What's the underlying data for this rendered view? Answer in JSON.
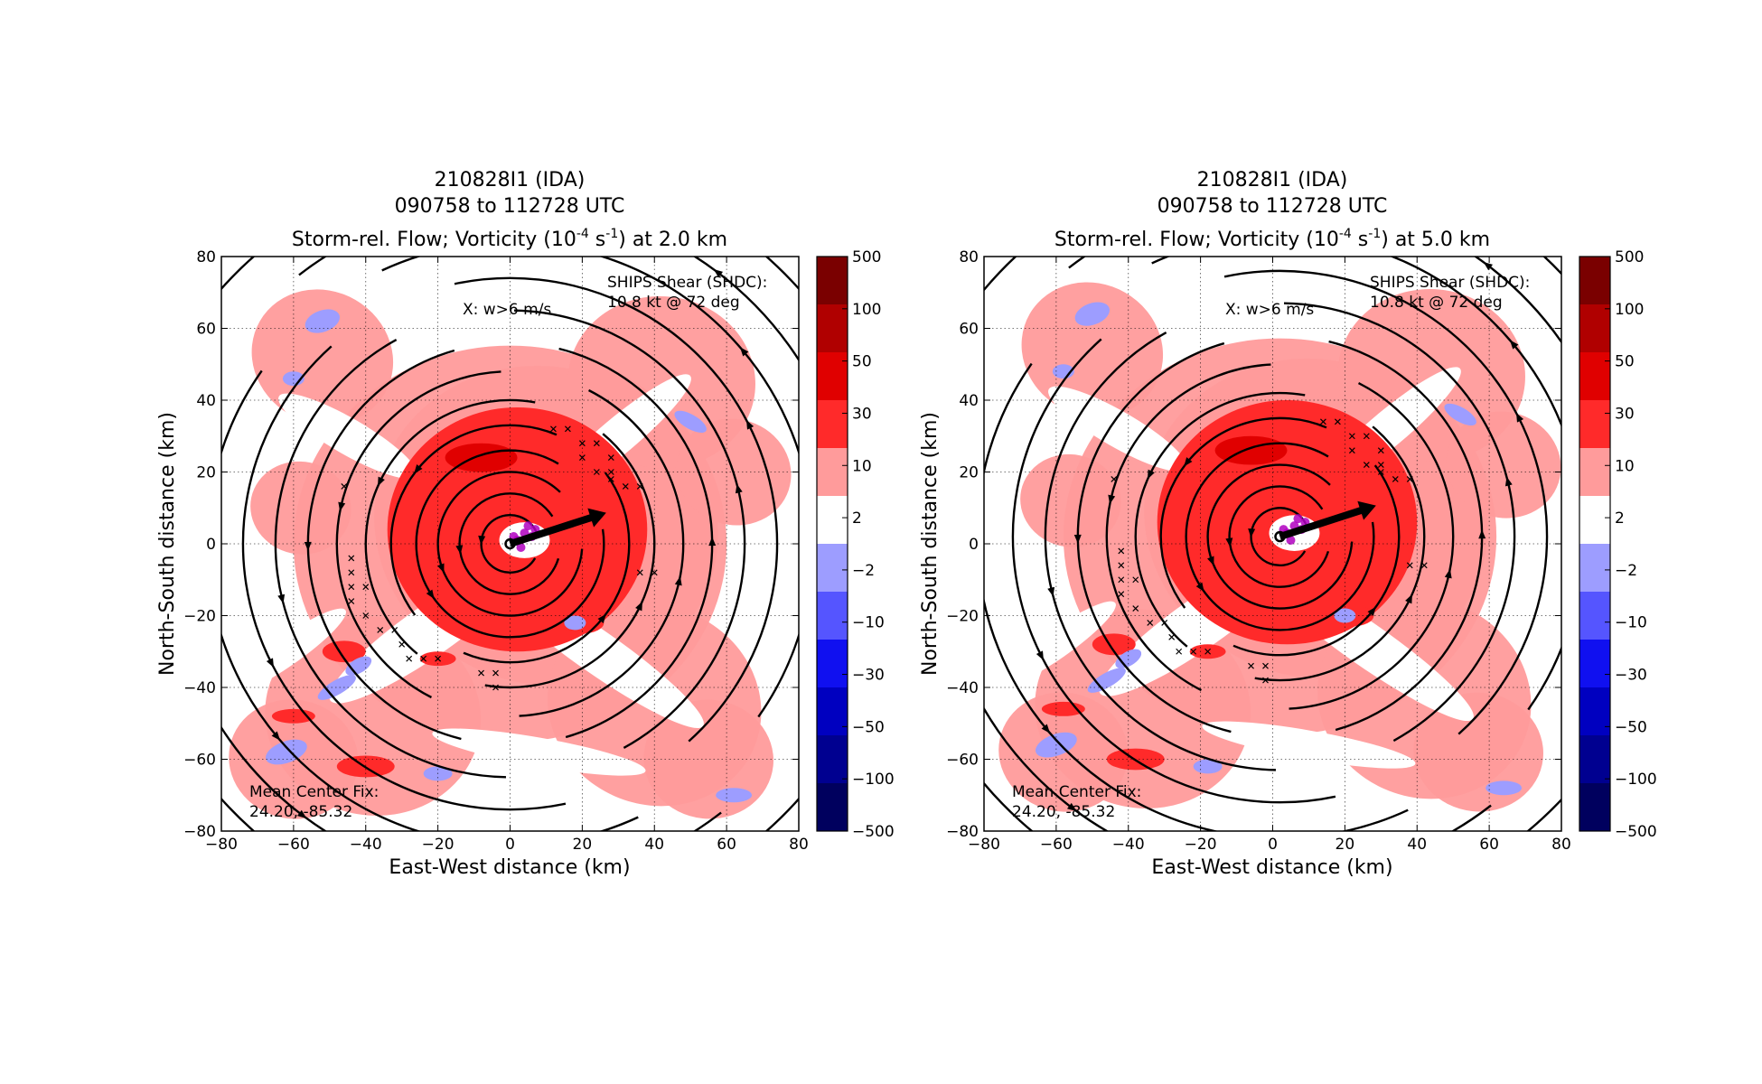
{
  "chart_data": [
    {
      "type": "heatmap",
      "title_lines": [
        "210828I1 (IDA)",
        "090758 to 112728 UTC"
      ],
      "title_main": "Storm-rel. Flow; Vorticity (10",
      "title_sup1": "-4",
      "title_mid": " s",
      "title_sup2": "-1",
      "title_end": ") at 2.0 km",
      "xlabel": "East-West distance (km)",
      "ylabel": "North-South distance (km)",
      "xlim": [
        -80,
        80
      ],
      "ylim": [
        -80,
        80
      ],
      "xticks": [
        "−80",
        "−60",
        "−40",
        "−20",
        "0",
        "20",
        "40",
        "60",
        "80"
      ],
      "yticks": [
        "80",
        "60",
        "40",
        "20",
        "0",
        "−20",
        "−40",
        "−60",
        "−80"
      ],
      "grid": true,
      "annotation_w": "X: w>6 m/s",
      "shear_line1": "SHIPS Shear (SHDC):",
      "shear_line2": "10.8 kt @ 72 deg",
      "fix_line1": "Mean Center Fix:",
      "fix_line2": "24.20, -85.32",
      "shear_arrow_dir_deg": 72,
      "vortex_core_km": [
        0,
        0
      ],
      "colorbar_ticks": [
        "500",
        "100",
        "50",
        "30",
        "10",
        "2",
        "−2",
        "−10",
        "−30",
        "−50",
        "−100",
        "−500"
      ],
      "colorbar_colors": [
        "#7a0000",
        "#b00000",
        "#e00000",
        "#ff2a2a",
        "#ff9b9b",
        "#ffffff",
        "#9d9dff",
        "#5555ff",
        "#1010f0",
        "#0000c0",
        "#000090",
        "#00005e"
      ],
      "w_markers": [
        [
          12,
          32
        ],
        [
          16,
          32
        ],
        [
          20,
          28
        ],
        [
          24,
          28
        ],
        [
          20,
          24
        ],
        [
          28,
          24
        ],
        [
          24,
          20
        ],
        [
          28,
          20
        ],
        [
          32,
          16
        ],
        [
          36,
          16
        ],
        [
          28,
          18
        ],
        [
          -46,
          16
        ],
        [
          -44,
          -4
        ],
        [
          -44,
          -8
        ],
        [
          -44,
          -12
        ],
        [
          -44,
          -16
        ],
        [
          -40,
          -12
        ],
        [
          -40,
          -20
        ],
        [
          -36,
          -24
        ],
        [
          -32,
          -24
        ],
        [
          -30,
          -28
        ],
        [
          -28,
          -32
        ],
        [
          -24,
          -32
        ],
        [
          -20,
          -32
        ],
        [
          -8,
          -36
        ],
        [
          -4,
          -36
        ],
        [
          -4,
          -40
        ],
        [
          36,
          -8
        ],
        [
          40,
          -8
        ]
      ]
    },
    {
      "type": "heatmap",
      "title_lines": [
        "210828I1 (IDA)",
        "090758 to 112728 UTC"
      ],
      "title_main": "Storm-rel. Flow; Vorticity (10",
      "title_sup1": "-4",
      "title_mid": " s",
      "title_sup2": "-1",
      "title_end": ") at 5.0 km",
      "xlabel": "East-West distance (km)",
      "ylabel": "North-South distance (km)",
      "xlim": [
        -80,
        80
      ],
      "ylim": [
        -80,
        80
      ],
      "xticks": [
        "−80",
        "−60",
        "−40",
        "−20",
        "0",
        "20",
        "40",
        "60",
        "80"
      ],
      "yticks": [
        "80",
        "60",
        "40",
        "20",
        "0",
        "−20",
        "−40",
        "−60",
        "−80"
      ],
      "grid": true,
      "annotation_w": "X: w>6 m/s",
      "shear_line1": "SHIPS Shear (SHDC):",
      "shear_line2": "10.8 kt @ 72 deg",
      "fix_line1": "Mean Center Fix:",
      "fix_line2": "24.20, -85.32",
      "shear_arrow_dir_deg": 72,
      "vortex_core_km": [
        2,
        2
      ],
      "colorbar_ticks": [
        "500",
        "100",
        "50",
        "30",
        "10",
        "2",
        "−2",
        "−10",
        "−30",
        "−50",
        "−100",
        "−500"
      ],
      "colorbar_colors": [
        "#7a0000",
        "#b00000",
        "#e00000",
        "#ff2a2a",
        "#ff9b9b",
        "#ffffff",
        "#9d9dff",
        "#5555ff",
        "#1010f0",
        "#0000c0",
        "#000090",
        "#00005e"
      ],
      "w_markers": [
        [
          12,
          32
        ],
        [
          16,
          32
        ],
        [
          20,
          28
        ],
        [
          24,
          28
        ],
        [
          20,
          24
        ],
        [
          28,
          24
        ],
        [
          24,
          20
        ],
        [
          28,
          20
        ],
        [
          32,
          16
        ],
        [
          36,
          16
        ],
        [
          28,
          18
        ],
        [
          -46,
          16
        ],
        [
          -44,
          -4
        ],
        [
          -44,
          -8
        ],
        [
          -44,
          -12
        ],
        [
          -44,
          -16
        ],
        [
          -40,
          -12
        ],
        [
          -40,
          -20
        ],
        [
          -36,
          -24
        ],
        [
          -32,
          -24
        ],
        [
          -30,
          -28
        ],
        [
          -28,
          -32
        ],
        [
          -24,
          -32
        ],
        [
          -20,
          -32
        ],
        [
          -8,
          -36
        ],
        [
          -4,
          -36
        ],
        [
          -4,
          -40
        ],
        [
          36,
          -8
        ],
        [
          40,
          -8
        ]
      ]
    }
  ]
}
